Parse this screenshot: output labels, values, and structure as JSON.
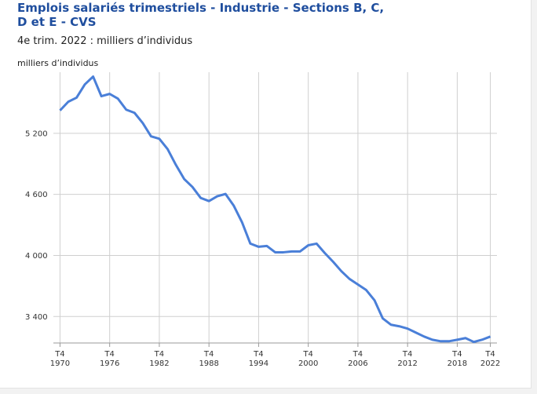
{
  "chart_data": {
    "type": "line",
    "title": "Emplois salariés trimestriels - Industrie - Sections B, C, D et E - CVS",
    "subtitle": "4e trim. 2022 : milliers d’individus",
    "y_label": "milliers d’individus",
    "x": [
      1970,
      1971,
      1972,
      1973,
      1974,
      1975,
      1976,
      1977,
      1978,
      1979,
      1980,
      1981,
      1982,
      1983,
      1984,
      1985,
      1986,
      1987,
      1988,
      1989,
      1990,
      1991,
      1992,
      1993,
      1994,
      1995,
      1996,
      1997,
      1998,
      1999,
      2000,
      2001,
      2002,
      2003,
      2004,
      2005,
      2006,
      2007,
      2008,
      2009,
      2010,
      2011,
      2012,
      2013,
      2014,
      2015,
      2016,
      2017,
      2018,
      2019,
      2020,
      2021,
      2022
    ],
    "series": [
      {
        "name": "Emplois salariés",
        "color": "#4a7fd8",
        "values": [
          5424,
          5510,
          5550,
          5680,
          5757,
          5564,
          5587,
          5540,
          5432,
          5401,
          5300,
          5170,
          5146,
          5045,
          4890,
          4751,
          4673,
          4565,
          4534,
          4581,
          4604,
          4488,
          4325,
          4116,
          4085,
          4093,
          4031,
          4031,
          4039,
          4039,
          4100,
          4116,
          4023,
          3938,
          3845,
          3768,
          3714,
          3660,
          3560,
          3381,
          3319,
          3304,
          3281,
          3242,
          3203,
          3172,
          3157,
          3157,
          3172,
          3188,
          3150,
          3172,
          3203
        ]
      }
    ],
    "xlim": [
      1969.2,
      2022.8
    ],
    "xticks": [
      {
        "value": 1970,
        "label": "T4 1970"
      },
      {
        "value": 1976,
        "label": "T4 1976"
      },
      {
        "value": 1982,
        "label": "T4 1982"
      },
      {
        "value": 1988,
        "label": "T4 1988"
      },
      {
        "value": 1994,
        "label": "T4 1994"
      },
      {
        "value": 2000,
        "label": "T4 2000"
      },
      {
        "value": 2006,
        "label": "T4 2006"
      },
      {
        "value": 2012,
        "label": "T4 2012"
      },
      {
        "value": 2018,
        "label": "T4 2018"
      },
      {
        "value": 2022,
        "label": "T4 2022"
      }
    ],
    "ylim": [
      3140,
      5800
    ],
    "yticks": [
      {
        "value": 3400,
        "label": "3 400"
      },
      {
        "value": 4000,
        "label": "4 000"
      },
      {
        "value": 4600,
        "label": "4 600"
      },
      {
        "value": 5200,
        "label": "5 200"
      }
    ],
    "grid": true
  }
}
